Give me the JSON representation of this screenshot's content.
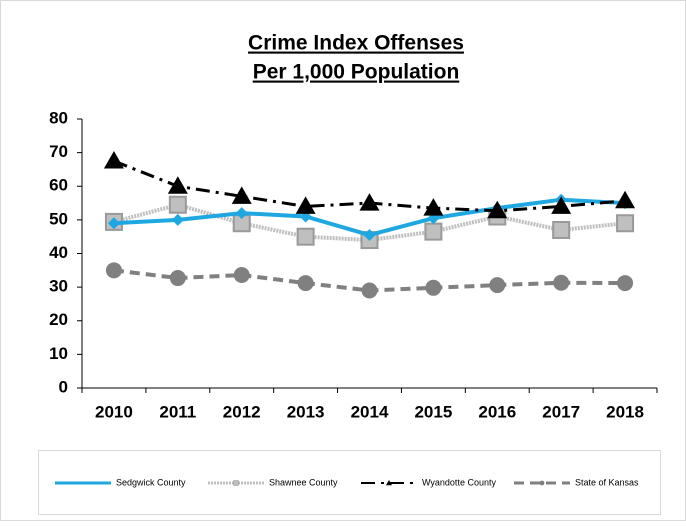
{
  "chart_data": {
    "type": "line",
    "title": [
      "Crime Index Offenses",
      "Per 1,000 Population"
    ],
    "categories": [
      "2010",
      "2011",
      "2012",
      "2013",
      "2014",
      "2015",
      "2016",
      "2017",
      "2018"
    ],
    "ylim": [
      0,
      80
    ],
    "yticks": [
      0,
      10,
      20,
      30,
      40,
      50,
      60,
      70,
      80
    ],
    "grid": false,
    "legend": "bottom",
    "series": [
      {
        "name": "State of Kansas",
        "color": "#808080",
        "dash": "10,6",
        "marker": "circle",
        "width": 4,
        "values": [
          35,
          32.7,
          33.6,
          31.2,
          29,
          29.8,
          30.6,
          31.3,
          31.2
        ]
      },
      {
        "name": "Shawnee County",
        "color": "#bfbfbf",
        "dash": "2,1",
        "marker": "square",
        "width": 4,
        "values": [
          49.4,
          54.5,
          49,
          45,
          44,
          46.5,
          51,
          47,
          49
        ]
      },
      {
        "name": "Sedgwick County",
        "color": "#1ea7e1",
        "dash": "",
        "marker": "diamond",
        "width": 4,
        "values": [
          49,
          50,
          52,
          51,
          45.5,
          50.5,
          53.5,
          56,
          55
        ]
      },
      {
        "name": "Wyandotte County",
        "color": "#000000",
        "dash": "14,6,3,6",
        "marker": "triangle",
        "width": 3,
        "values": [
          67.5,
          60,
          57,
          54,
          55,
          53.5,
          52.7,
          54,
          55.7
        ]
      }
    ]
  }
}
